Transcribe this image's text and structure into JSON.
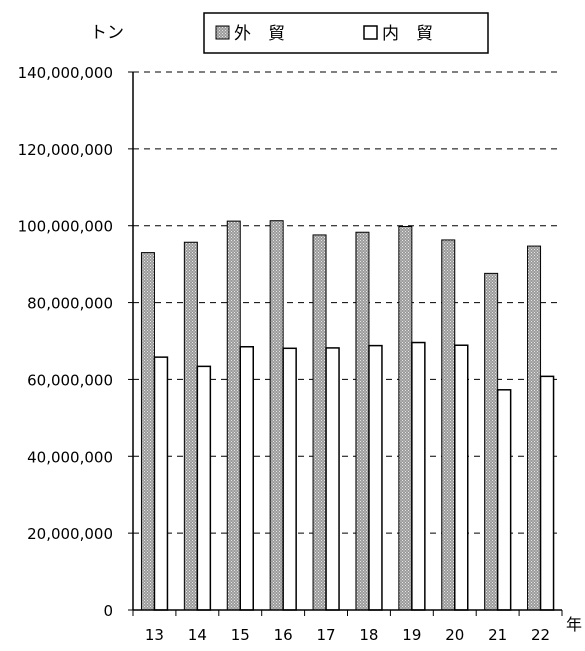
{
  "chart_data": {
    "type": "bar",
    "unit_label": "トン",
    "x_unit_label": "年",
    "categories": [
      "13",
      "14",
      "15",
      "16",
      "17",
      "18",
      "19",
      "20",
      "21",
      "22"
    ],
    "series": [
      {
        "name": "外　貿",
        "values": [
          93000000,
          95700000,
          101200000,
          101300000,
          97600000,
          98300000,
          99800000,
          96300000,
          87600000,
          94700000
        ]
      },
      {
        "name": "内　貿",
        "values": [
          65800000,
          63400000,
          68500000,
          68100000,
          68200000,
          68800000,
          69600000,
          68900000,
          57300000,
          60800000
        ]
      }
    ],
    "ylim": [
      0,
      140000000
    ],
    "yticks": [
      0,
      20000000,
      40000000,
      60000000,
      80000000,
      100000000,
      120000000,
      140000000
    ],
    "ytick_labels": [
      "0",
      "20,000,000",
      "40,000,000",
      "60,000,000",
      "80,000,000",
      "100,000,000",
      "120,000,000",
      "140,000,000"
    ],
    "grid": true,
    "legend_position": "top"
  }
}
